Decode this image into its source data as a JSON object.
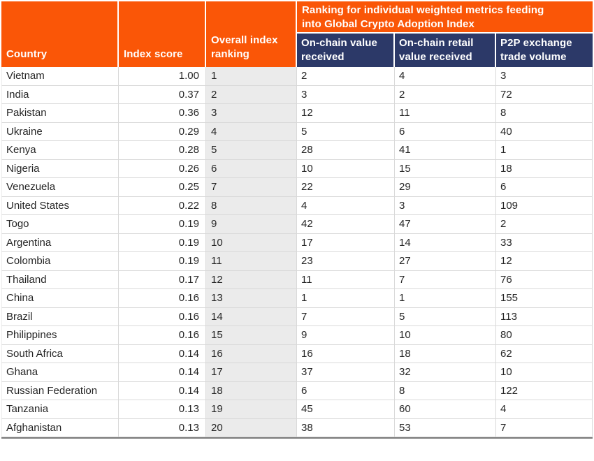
{
  "chart_data": {
    "type": "table",
    "banner": "Ranking for individual weighted metrics feeding\ninto Global Crypto Adoption Index",
    "columns": [
      "Country",
      "Index score",
      "Overall index ranking",
      "On-chain value received",
      "On-chain retail value received",
      "P2P exchange trade volume"
    ],
    "rows": [
      {
        "country": "Vietnam",
        "index_score": "1.00",
        "overall_ranking": "1",
        "on_chain_value_received": "2",
        "on_chain_retail_value_received": "4",
        "p2p_exchange_trade_volume": "3"
      },
      {
        "country": "India",
        "index_score": "0.37",
        "overall_ranking": "2",
        "on_chain_value_received": "3",
        "on_chain_retail_value_received": "2",
        "p2p_exchange_trade_volume": "72"
      },
      {
        "country": "Pakistan",
        "index_score": "0.36",
        "overall_ranking": "3",
        "on_chain_value_received": "12",
        "on_chain_retail_value_received": "11",
        "p2p_exchange_trade_volume": "8"
      },
      {
        "country": "Ukraine",
        "index_score": "0.29",
        "overall_ranking": "4",
        "on_chain_value_received": "5",
        "on_chain_retail_value_received": "6",
        "p2p_exchange_trade_volume": "40"
      },
      {
        "country": "Kenya",
        "index_score": "0.28",
        "overall_ranking": "5",
        "on_chain_value_received": "28",
        "on_chain_retail_value_received": "41",
        "p2p_exchange_trade_volume": "1"
      },
      {
        "country": "Nigeria",
        "index_score": "0.26",
        "overall_ranking": "6",
        "on_chain_value_received": "10",
        "on_chain_retail_value_received": "15",
        "p2p_exchange_trade_volume": "18"
      },
      {
        "country": "Venezuela",
        "index_score": "0.25",
        "overall_ranking": "7",
        "on_chain_value_received": "22",
        "on_chain_retail_value_received": "29",
        "p2p_exchange_trade_volume": "6"
      },
      {
        "country": "United States",
        "index_score": "0.22",
        "overall_ranking": "8",
        "on_chain_value_received": "4",
        "on_chain_retail_value_received": "3",
        "p2p_exchange_trade_volume": "109"
      },
      {
        "country": "Togo",
        "index_score": "0.19",
        "overall_ranking": "9",
        "on_chain_value_received": "42",
        "on_chain_retail_value_received": "47",
        "p2p_exchange_trade_volume": "2"
      },
      {
        "country": "Argentina",
        "index_score": "0.19",
        "overall_ranking": "10",
        "on_chain_value_received": "17",
        "on_chain_retail_value_received": "14",
        "p2p_exchange_trade_volume": "33"
      },
      {
        "country": "Colombia",
        "index_score": "0.19",
        "overall_ranking": "11",
        "on_chain_value_received": "23",
        "on_chain_retail_value_received": "27",
        "p2p_exchange_trade_volume": "12"
      },
      {
        "country": "Thailand",
        "index_score": "0.17",
        "overall_ranking": "12",
        "on_chain_value_received": "11",
        "on_chain_retail_value_received": "7",
        "p2p_exchange_trade_volume": "76"
      },
      {
        "country": "China",
        "index_score": "0.16",
        "overall_ranking": "13",
        "on_chain_value_received": "1",
        "on_chain_retail_value_received": "1",
        "p2p_exchange_trade_volume": "155"
      },
      {
        "country": "Brazil",
        "index_score": "0.16",
        "overall_ranking": "14",
        "on_chain_value_received": "7",
        "on_chain_retail_value_received": "5",
        "p2p_exchange_trade_volume": "113"
      },
      {
        "country": "Philippines",
        "index_score": "0.16",
        "overall_ranking": "15",
        "on_chain_value_received": "9",
        "on_chain_retail_value_received": "10",
        "p2p_exchange_trade_volume": "80"
      },
      {
        "country": "South Africa",
        "index_score": "0.14",
        "overall_ranking": "16",
        "on_chain_value_received": "16",
        "on_chain_retail_value_received": "18",
        "p2p_exchange_trade_volume": "62"
      },
      {
        "country": "Ghana",
        "index_score": "0.14",
        "overall_ranking": "17",
        "on_chain_value_received": "37",
        "on_chain_retail_value_received": "32",
        "p2p_exchange_trade_volume": "10"
      },
      {
        "country": "Russian Federation",
        "index_score": "0.14",
        "overall_ranking": "18",
        "on_chain_value_received": "6",
        "on_chain_retail_value_received": "8",
        "p2p_exchange_trade_volume": "122"
      },
      {
        "country": "Tanzania",
        "index_score": "0.13",
        "overall_ranking": "19",
        "on_chain_value_received": "45",
        "on_chain_retail_value_received": "60",
        "p2p_exchange_trade_volume": "4"
      },
      {
        "country": "Afghanistan",
        "index_score": "0.13",
        "overall_ranking": "20",
        "on_chain_value_received": "38",
        "on_chain_retail_value_received": "53",
        "p2p_exchange_trade_volume": "7"
      }
    ]
  },
  "colors": {
    "header_orange": "#FA5607",
    "header_navy": "#2C3968",
    "rank_column_bg": "#EBEBEB",
    "row_border": "#D9D9D9",
    "table_bottom_border": "#7A7A7A",
    "data_text": "#262626",
    "header_text": "#FFFFFF"
  }
}
